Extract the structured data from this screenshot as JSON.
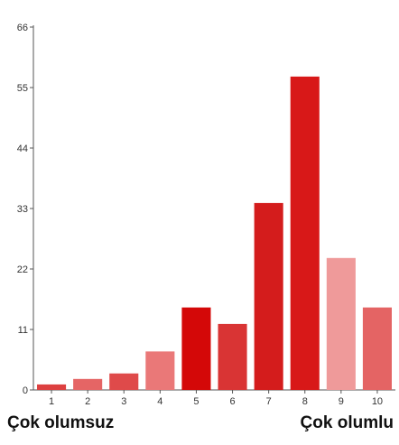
{
  "chart_data": {
    "type": "bar",
    "categories": [
      "1",
      "2",
      "3",
      "4",
      "5",
      "6",
      "7",
      "8",
      "9",
      "10"
    ],
    "values": [
      1,
      2,
      3,
      7,
      15,
      12,
      34,
      57,
      24,
      15
    ],
    "colors": [
      "#dd4040",
      "#e56565",
      "#df4a4a",
      "#ea7878",
      "#d40808",
      "#d93434",
      "#d41c1c",
      "#d81818",
      "#ef9a9a",
      "#e46464"
    ],
    "ylim": [
      0,
      66
    ],
    "yticks": [
      0,
      11,
      22,
      33,
      44,
      55,
      66
    ],
    "grid": false
  },
  "scale_labels": {
    "left": "Çok olumsuz",
    "right": "Çok olumlu"
  }
}
